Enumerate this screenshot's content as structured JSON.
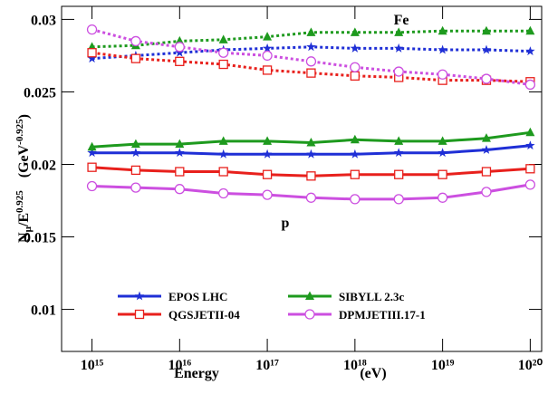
{
  "chart_data": {
    "type": "line",
    "log_x": true,
    "ylabel_parts": [
      "N",
      "μ",
      "/E",
      "0.925",
      "(GeV",
      "-0.925",
      ")"
    ],
    "xlabel": "Energy",
    "xlabel_unit": "(eV)",
    "annotations": [
      "Fe",
      "p"
    ],
    "x": [
      1000000000000000.0,
      3160000000000000.0,
      1e+16,
      3.16e+16,
      1e+17,
      3.16e+17,
      1e+18,
      3.16e+18,
      1e+19,
      3.16e+19,
      1e+20
    ],
    "xlim": [
      450000000000000.0,
      1.35e+20
    ],
    "xticks": [
      {
        "value": 1000000000000000.0,
        "label": "10¹⁵"
      },
      {
        "value": 1e+16,
        "label": "10¹⁶"
      },
      {
        "value": 1e+17,
        "label": "10¹⁷"
      },
      {
        "value": 1e+18,
        "label": "10¹⁸"
      },
      {
        "value": 1e+19,
        "label": "10¹⁹"
      },
      {
        "value": 1e+20,
        "label": "10²⁰"
      }
    ],
    "ylim": [
      0.0071,
      0.0309
    ],
    "yticks": [
      0.01,
      0.015,
      0.02,
      0.025,
      0.03
    ],
    "series": [
      {
        "name": "EPOS LHC",
        "color": "#1f2fd6",
        "marker": "star",
        "fe": [
          0.0273,
          0.0275,
          0.0277,
          0.0279,
          0.028,
          0.0281,
          0.028,
          0.028,
          0.0279,
          0.0279,
          0.0278
        ],
        "p": [
          0.0208,
          0.0208,
          0.0208,
          0.0207,
          0.0207,
          0.0207,
          0.0207,
          0.0208,
          0.0208,
          0.021,
          0.0213
        ]
      },
      {
        "name": "SIBYLL 2.3c",
        "color": "#1e9a1e",
        "marker": "triangle",
        "fe": [
          0.0281,
          0.0282,
          0.0285,
          0.0286,
          0.0288,
          0.0291,
          0.0291,
          0.0291,
          0.0292,
          0.0292,
          0.0292
        ],
        "p": [
          0.0212,
          0.0214,
          0.0214,
          0.0216,
          0.0216,
          0.0215,
          0.0217,
          0.0216,
          0.0216,
          0.0218,
          0.0222
        ]
      },
      {
        "name": "QGSJETII-04",
        "color": "#e8201c",
        "marker": "square",
        "fe": [
          0.0277,
          0.0273,
          0.0271,
          0.0269,
          0.0265,
          0.0263,
          0.0261,
          0.026,
          0.0258,
          0.0258,
          0.0257
        ],
        "p": [
          0.0198,
          0.0196,
          0.0195,
          0.0195,
          0.0193,
          0.0192,
          0.0193,
          0.0193,
          0.0193,
          0.0195,
          0.0197
        ]
      },
      {
        "name": "DPMJETIII.17-1",
        "color": "#cc4fe0",
        "marker": "circle",
        "fe": [
          0.0293,
          0.0285,
          0.0281,
          0.0277,
          0.0275,
          0.0271,
          0.0267,
          0.0264,
          0.0262,
          0.0259,
          0.0255
        ],
        "p": [
          0.0185,
          0.0184,
          0.0183,
          0.018,
          0.0179,
          0.0177,
          0.0176,
          0.0176,
          0.0177,
          0.0181,
          0.0186
        ]
      }
    ]
  }
}
